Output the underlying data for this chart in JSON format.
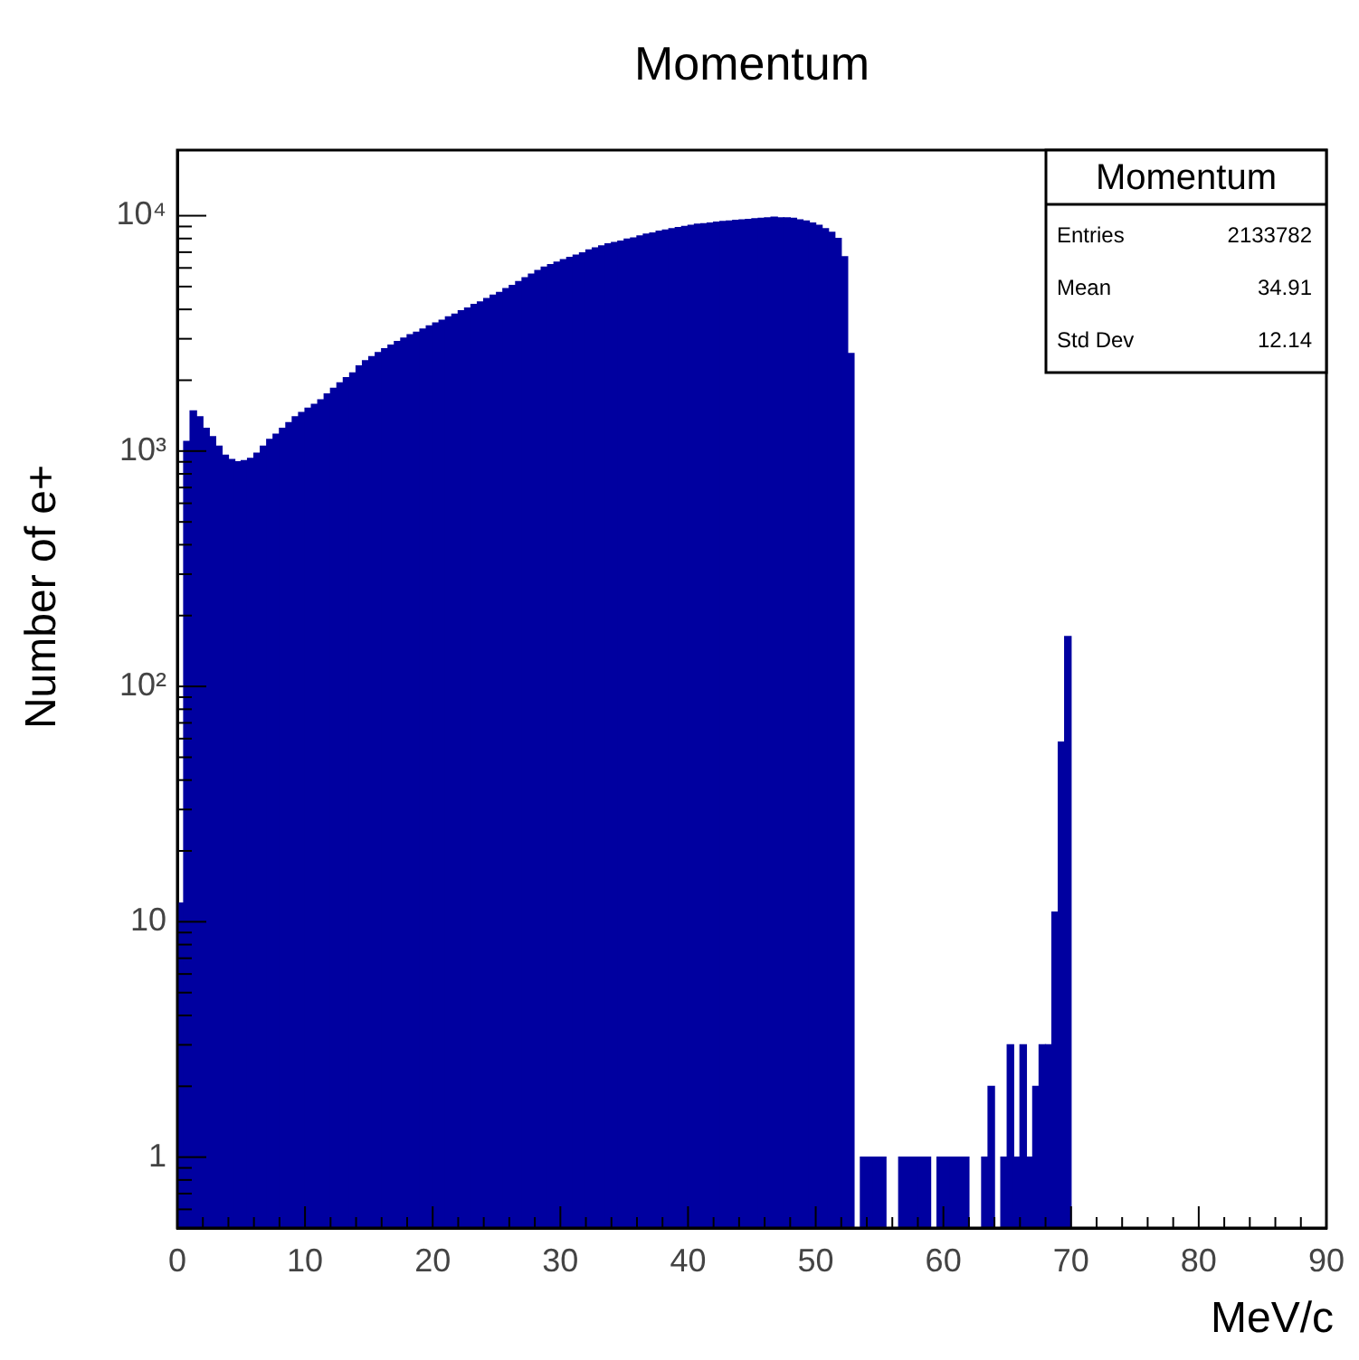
{
  "chart_data": {
    "type": "histogram",
    "title": "Momentum",
    "xlabel": "MeV/c",
    "ylabel": "Number of e+",
    "annotations": [
      "Momentum",
      "Entries",
      "2133782",
      "Mean",
      "34.91",
      "Std Dev",
      "12.14"
    ],
    "color": "#0000a0",
    "log": "y",
    "grid": false,
    "legend": false,
    "xlim": [
      0,
      90
    ],
    "ylim": [
      0.5,
      19000
    ],
    "xticks": [
      0,
      {
        "value": 2,
        "label": null
      },
      {
        "value": 4,
        "label": null
      },
      {
        "value": 6,
        "label": null
      },
      {
        "value": 8,
        "label": null
      },
      10,
      {
        "value": 12,
        "label": null
      },
      {
        "value": 14,
        "label": null
      },
      {
        "value": 16,
        "label": null
      },
      {
        "value": 18,
        "label": null
      },
      20,
      {
        "value": 22,
        "label": null
      },
      {
        "value": 24,
        "label": null
      },
      {
        "value": 26,
        "label": null
      },
      {
        "value": 28,
        "label": null
      },
      30,
      {
        "value": 32,
        "label": null
      },
      {
        "value": 34,
        "label": null
      },
      {
        "value": 36,
        "label": null
      },
      {
        "value": 38,
        "label": null
      },
      40,
      {
        "value": 42,
        "label": null
      },
      {
        "value": 44,
        "label": null
      },
      {
        "value": 46,
        "label": null
      },
      {
        "value": 48,
        "label": null
      },
      50,
      {
        "value": 52,
        "label": null
      },
      {
        "value": 54,
        "label": null
      },
      {
        "value": 56,
        "label": null
      },
      {
        "value": 58,
        "label": null
      },
      60,
      {
        "value": 62,
        "label": null
      },
      {
        "value": 64,
        "label": null
      },
      {
        "value": 66,
        "label": null
      },
      {
        "value": 68,
        "label": null
      },
      70,
      {
        "value": 72,
        "label": null
      },
      {
        "value": 74,
        "label": null
      },
      {
        "value": 76,
        "label": null
      },
      {
        "value": 78,
        "label": null
      },
      80,
      {
        "value": 82,
        "label": null
      },
      {
        "value": 84,
        "label": null
      },
      {
        "value": 86,
        "label": null
      },
      {
        "value": 88,
        "label": null
      },
      90
    ],
    "yticks": [
      {
        "value": 0.6,
        "label": null
      },
      {
        "value": 0.7,
        "label": null
      },
      {
        "value": 0.8,
        "label": null
      },
      {
        "value": 0.9,
        "label": null
      },
      1,
      {
        "value": 2,
        "label": null
      },
      {
        "value": 3,
        "label": null
      },
      {
        "value": 4,
        "label": null
      },
      {
        "value": 5,
        "label": null
      },
      {
        "value": 6,
        "label": null
      },
      {
        "value": 7,
        "label": null
      },
      {
        "value": 8,
        "label": null
      },
      {
        "value": 9,
        "label": null
      },
      10,
      {
        "value": 20,
        "label": null
      },
      {
        "value": 30,
        "label": null
      },
      {
        "value": 40,
        "label": null
      },
      {
        "value": 50,
        "label": null
      },
      {
        "value": 60,
        "label": null
      },
      {
        "value": 70,
        "label": null
      },
      {
        "value": 80,
        "label": null
      },
      {
        "value": 90,
        "label": null
      },
      {
        "value": 100,
        "label": "10²"
      },
      {
        "value": 200,
        "label": null
      },
      {
        "value": 300,
        "label": null
      },
      {
        "value": 400,
        "label": null
      },
      {
        "value": 500,
        "label": null
      },
      {
        "value": 600,
        "label": null
      },
      {
        "value": 700,
        "label": null
      },
      {
        "value": 800,
        "label": null
      },
      {
        "value": 900,
        "label": null
      },
      {
        "value": 1000,
        "label": "10³"
      },
      {
        "value": 2000,
        "label": null
      },
      {
        "value": 3000,
        "label": null
      },
      {
        "value": 4000,
        "label": null
      },
      {
        "value": 5000,
        "label": null
      },
      {
        "value": 6000,
        "label": null
      },
      {
        "value": 7000,
        "label": null
      },
      {
        "value": 8000,
        "label": null
      },
      {
        "value": 9000,
        "label": null
      },
      {
        "value": 10000,
        "label": "10⁴"
      }
    ],
    "bins": [
      0,
      0.5,
      1,
      1.5,
      2,
      2.5,
      3,
      3.5,
      4,
      4.5,
      5,
      5.5,
      6,
      6.5,
      7,
      7.5,
      8,
      8.5,
      9,
      9.5,
      10,
      10.5,
      11,
      11.5,
      12,
      12.5,
      13,
      13.5,
      14,
      14.5,
      15,
      15.5,
      16,
      16.5,
      17,
      17.5,
      18,
      18.5,
      19,
      19.5,
      20,
      20.5,
      21,
      21.5,
      22,
      22.5,
      23,
      23.5,
      24,
      24.5,
      25,
      25.5,
      26,
      26.5,
      27,
      27.5,
      28,
      28.5,
      29,
      29.5,
      30,
      30.5,
      31,
      31.5,
      32,
      32.5,
      33,
      33.5,
      34,
      34.5,
      35,
      35.5,
      36,
      36.5,
      37,
      37.5,
      38,
      38.5,
      39,
      39.5,
      40,
      40.5,
      41,
      41.5,
      42,
      42.5,
      43,
      43.5,
      44,
      44.5,
      45,
      45.5,
      46,
      46.5,
      47,
      47.5,
      48,
      48.5,
      49,
      49.5,
      50,
      50.5,
      51,
      51.5,
      52,
      52.5,
      53,
      53.5,
      54,
      54.5,
      55,
      55.5,
      56,
      56.5,
      57,
      57.5,
      58,
      58.5,
      59,
      59.5,
      60,
      60.5,
      61,
      61.5,
      62,
      62.5,
      63,
      63.5,
      64,
      64.5,
      65,
      65.5,
      66,
      66.5,
      67,
      67.5,
      68,
      68.5,
      69,
      69.5,
      70
    ],
    "values": [
      12,
      1100,
      1480,
      1400,
      1250,
      1150,
      1050,
      960,
      920,
      900,
      910,
      930,
      980,
      1050,
      1120,
      1180,
      1250,
      1320,
      1400,
      1460,
      1520,
      1580,
      1650,
      1750,
      1850,
      1950,
      2050,
      2150,
      2300,
      2420,
      2520,
      2620,
      2720,
      2820,
      2920,
      3020,
      3120,
      3200,
      3300,
      3400,
      3500,
      3600,
      3720,
      3820,
      3950,
      4050,
      4200,
      4300,
      4450,
      4600,
      4720,
      4900,
      5050,
      5250,
      5450,
      5650,
      5850,
      6050,
      6200,
      6350,
      6500,
      6650,
      6800,
      6950,
      7150,
      7300,
      7450,
      7600,
      7700,
      7800,
      7950,
      8050,
      8200,
      8350,
      8450,
      8600,
      8700,
      8800,
      8900,
      9000,
      9100,
      9200,
      9250,
      9300,
      9400,
      9450,
      9500,
      9550,
      9600,
      9650,
      9700,
      9750,
      9800,
      9850,
      9800,
      9800,
      9750,
      9600,
      9500,
      9300,
      9100,
      8800,
      8500,
      8000,
      6700,
      2600,
      null,
      1,
      1,
      1,
      1,
      null,
      null,
      1,
      1,
      1,
      1,
      1,
      null,
      1,
      1,
      1,
      1,
      1,
      null,
      null,
      1,
      2,
      null,
      1,
      3,
      1,
      3,
      1,
      2,
      3,
      3,
      11,
      58,
      163
    ]
  }
}
